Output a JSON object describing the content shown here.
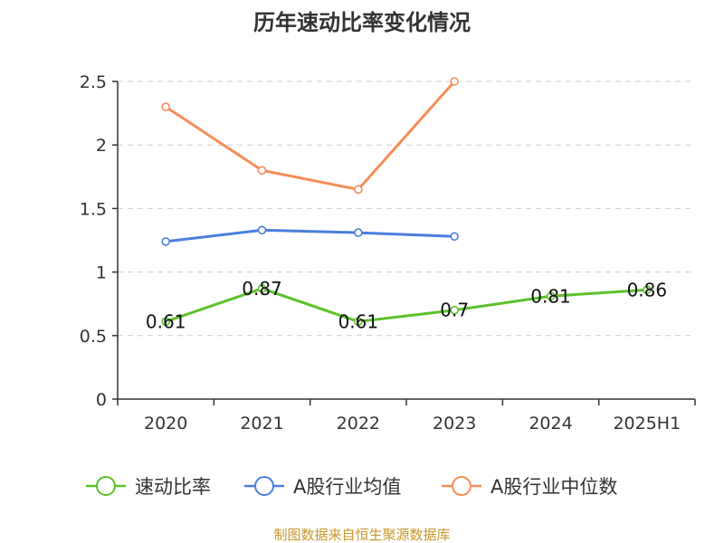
{
  "chart_data": {
    "type": "line",
    "title": "历年速动比率变化情况",
    "categories": [
      "2020",
      "2021",
      "2022",
      "2023",
      "2024",
      "2025H1"
    ],
    "ylim": [
      0,
      2.5
    ],
    "yticks": [
      {
        "value": 0,
        "label": "0"
      },
      {
        "value": 0.5,
        "label": "0.5"
      },
      {
        "value": 1,
        "label": "1"
      },
      {
        "value": 1.5,
        "label": "1.5"
      },
      {
        "value": 2,
        "label": "2"
      },
      {
        "value": 2.5,
        "label": "2.5"
      }
    ],
    "grid": true,
    "legend_position": "bottom",
    "series": [
      {
        "name": "速动比率",
        "color": "#5cc22a",
        "values": [
          0.61,
          0.87,
          0.61,
          0.7,
          0.81,
          0.86
        ],
        "labels": [
          "0.61",
          "0.87",
          "0.61",
          "0.7",
          "0.81",
          "0.86"
        ]
      },
      {
        "name": "A股行业均值",
        "color": "#4a7fdc",
        "values": [
          1.24,
          1.33,
          1.31,
          1.28,
          null,
          null
        ]
      },
      {
        "name": "A股行业中位数",
        "color": "#f58d56",
        "values": [
          2.3,
          1.8,
          1.65,
          2.5,
          null,
          null
        ]
      }
    ]
  },
  "source_note": "制图数据来自恒生聚源数据库"
}
